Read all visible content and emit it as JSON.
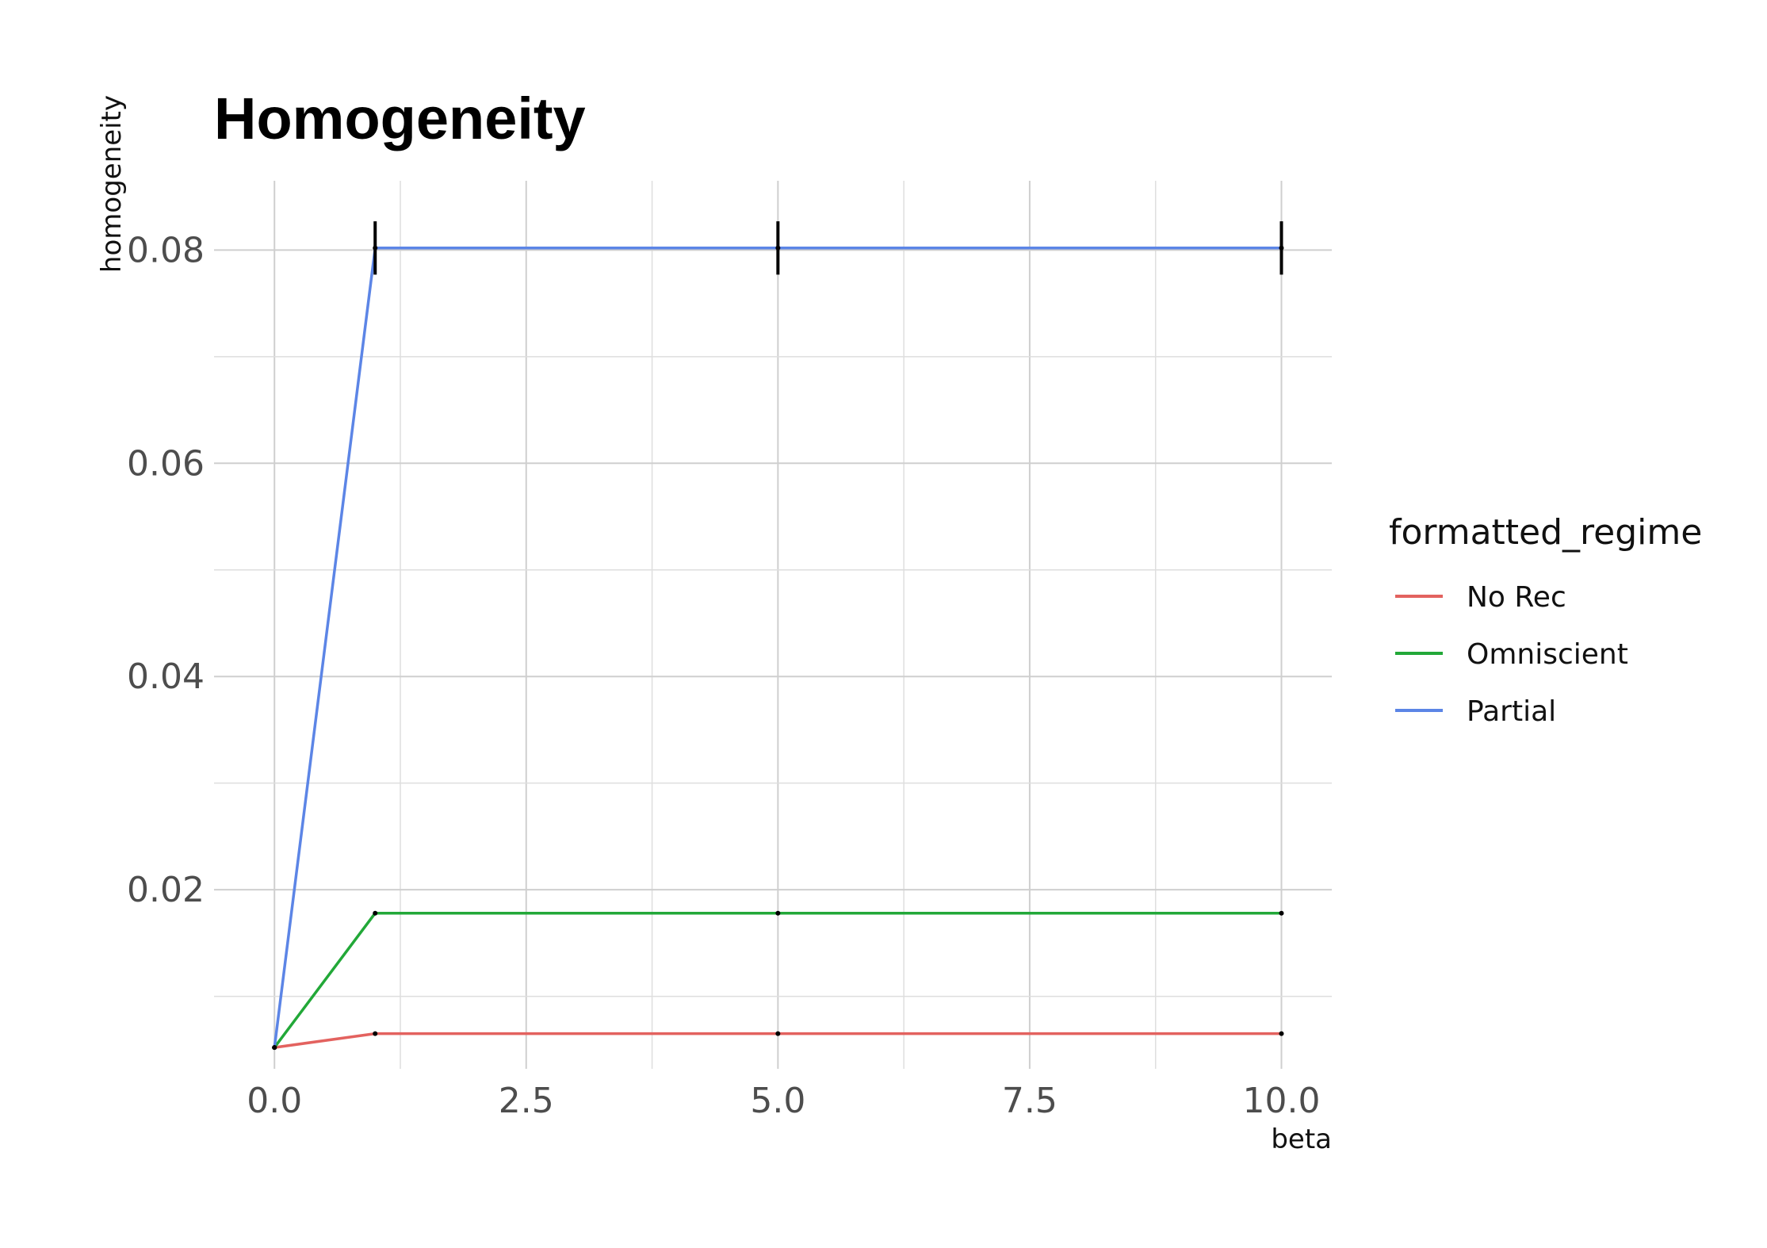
{
  "chart_data": {
    "type": "line",
    "title": "Homogeneity",
    "xlabel": "beta",
    "ylabel": "homogeneity",
    "xlim": [
      -0.6,
      10.5
    ],
    "ylim": [
      0.0032,
      0.0865
    ],
    "x_ticks": [
      0.0,
      2.5,
      5.0,
      7.5,
      10.0
    ],
    "x_tick_labels": [
      "0.0",
      "2.5",
      "5.0",
      "7.5",
      "10.0"
    ],
    "y_ticks": [
      0.02,
      0.04,
      0.06,
      0.08
    ],
    "y_tick_labels": [
      "0.02",
      "0.04",
      "0.06",
      "0.08"
    ],
    "grid": true,
    "legend": {
      "title": "formatted_regime",
      "position": "right"
    },
    "series": [
      {
        "name": "No Rec",
        "color": "#e3625f",
        "x": [
          0,
          1,
          5,
          10
        ],
        "y": [
          0.0052,
          0.0065,
          0.0065,
          0.0065
        ],
        "error": [
          0,
          0,
          0,
          0
        ]
      },
      {
        "name": "Omniscient",
        "color": "#22a838",
        "x": [
          0,
          1,
          5,
          10
        ],
        "y": [
          0.0052,
          0.0178,
          0.0178,
          0.0178
        ],
        "error": [
          0,
          0,
          0,
          0
        ]
      },
      {
        "name": "Partial",
        "color": "#5c85e6",
        "x": [
          0,
          1,
          5,
          10
        ],
        "y": [
          0.0052,
          0.0802,
          0.0802,
          0.0802
        ],
        "error": [
          0,
          0.0025,
          0.0025,
          0.0025
        ]
      }
    ]
  }
}
